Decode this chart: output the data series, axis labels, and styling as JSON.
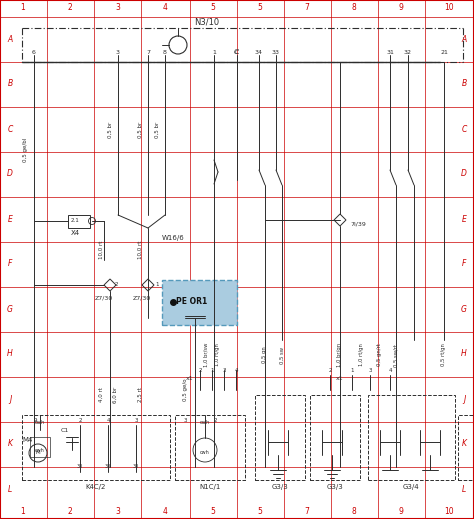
{
  "bg_color": "#ffffff",
  "border_color": "#cc0000",
  "line_color": "#2d2d2d",
  "blue_fill": "#aacce0",
  "blue_edge": "#5599bb",
  "fig_width": 4.74,
  "fig_height": 5.19,
  "dpi": 100,
  "title": "N3/10",
  "col_labels": [
    "1",
    "2",
    "3",
    "4",
    "5",
    "5",
    "7",
    "8",
    "9",
    "10"
  ],
  "row_labels": [
    "A",
    "B",
    "C",
    "D",
    "E",
    "F",
    "G",
    "H",
    "J",
    "K",
    "L"
  ],
  "pin_labels_B": [
    "6",
    "3",
    "7",
    "8",
    "1",
    "C",
    "34",
    "33",
    "31",
    "32",
    "21"
  ],
  "wire_labels": {
    "ge_bl": "0,5 ge/bl",
    "br1": "0,5 br",
    "br2": "0,5 br",
    "br3": "0,5 br",
    "rt1": "10,0 rt",
    "rt2": "10,0 rt",
    "ge_o": "0,5 ge/o",
    "br_sw": "1,0 br/sw",
    "rt_gn1": "1,0 rt/gn",
    "gn": "0,5 gn",
    "sw": "0,5 sw",
    "br_gn": "1,0 br/gn",
    "rt_gn2": "1,0 rt/gn",
    "gn_rt": "0,5 gn/rt",
    "sw_rt": "0,5 sw/rt",
    "rt_gn3": "0,5 rt/gn",
    "rt_j1": "4,0 rt",
    "br_j": "6,0 br",
    "rt_j2": "2,5 rt"
  },
  "component_labels": {
    "N310": "N3/10",
    "W166": "W16/6",
    "X4": "X4",
    "Z730_l": "Z7/30",
    "Z730_r": "Z7/30",
    "PE_OR": "PE OR1",
    "7i39": "7i/39",
    "M4": "M4",
    "C1": "C1",
    "K4C2": "K4C/2",
    "N1C1": "N1C/1",
    "G33a": "G3/3",
    "G33b": "G3/3",
    "G34": "G3/4"
  }
}
